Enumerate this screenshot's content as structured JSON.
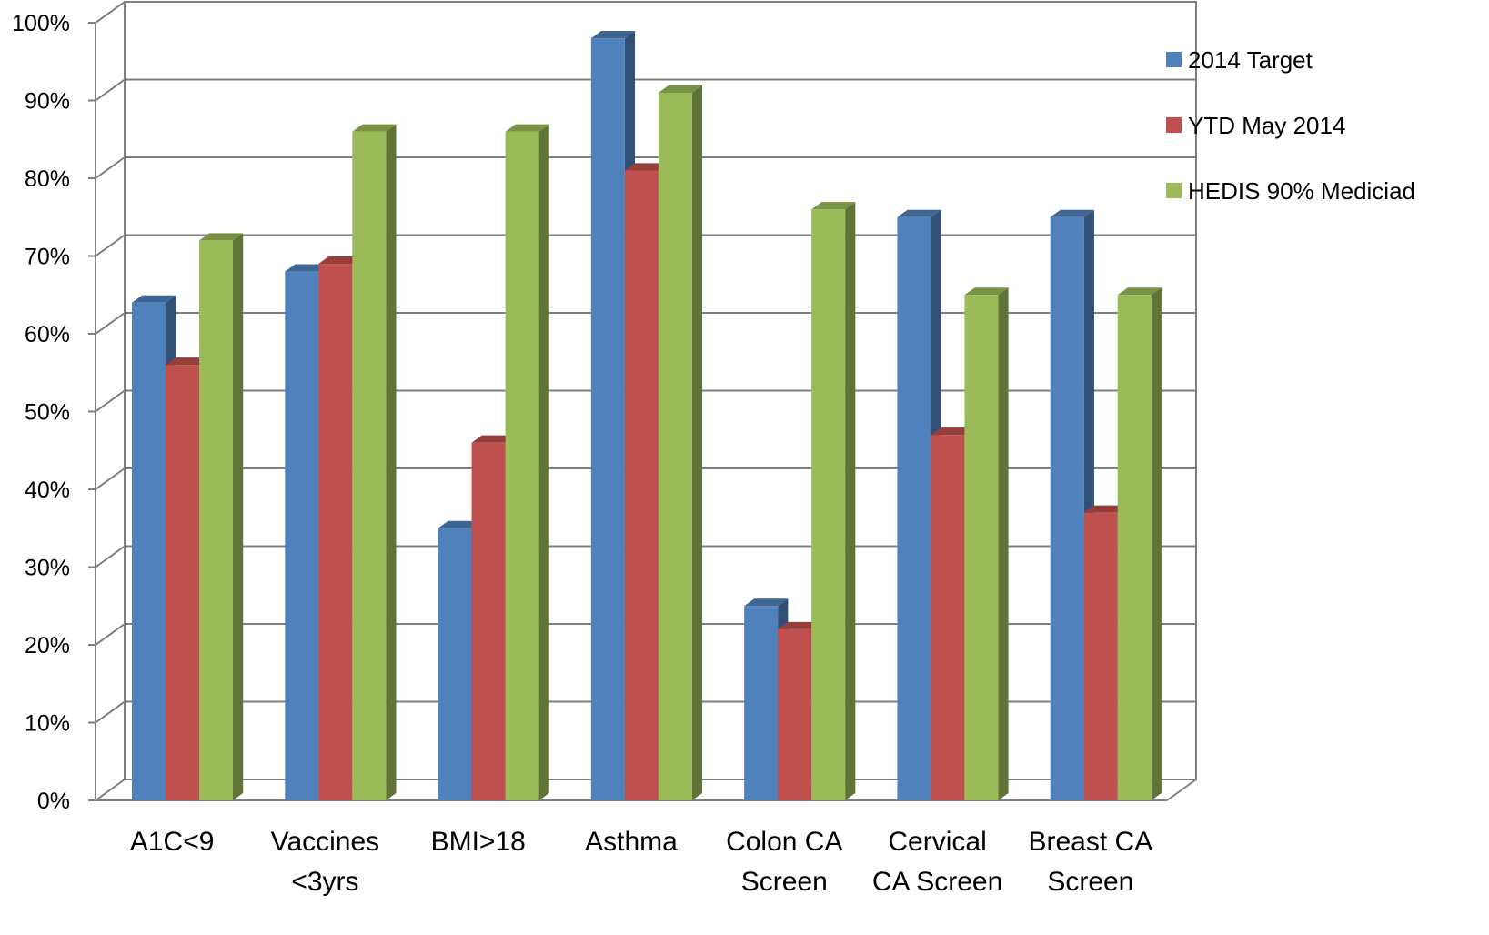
{
  "chart_data": {
    "type": "bar",
    "title": "",
    "xlabel": "",
    "ylabel": "",
    "ylim": [
      0,
      100
    ],
    "ytick_step": 10,
    "ytick_suffix": "%",
    "style": "3d-clustered-column",
    "grid": true,
    "legend": "right",
    "categories": [
      [
        "A1C<9"
      ],
      [
        "Vaccines",
        "<3yrs"
      ],
      [
        "BMI>18"
      ],
      [
        "Asthma"
      ],
      [
        "Colon CA",
        "Screen"
      ],
      [
        "Cervical",
        "CA Screen"
      ],
      [
        "Breast CA",
        "Screen"
      ]
    ],
    "series": [
      {
        "name": "2014 Target",
        "color": "#4F81BD",
        "values": [
          64,
          68,
          35,
          98,
          25,
          75,
          75
        ]
      },
      {
        "name": "YTD May 2014",
        "color": "#C0504D",
        "values": [
          56,
          69,
          46,
          81,
          22,
          47,
          37
        ]
      },
      {
        "name": "HEDIS 90% Mediciad",
        "color": "#9BBB59",
        "values": [
          72,
          86,
          86,
          91,
          76,
          65,
          65
        ]
      }
    ]
  }
}
